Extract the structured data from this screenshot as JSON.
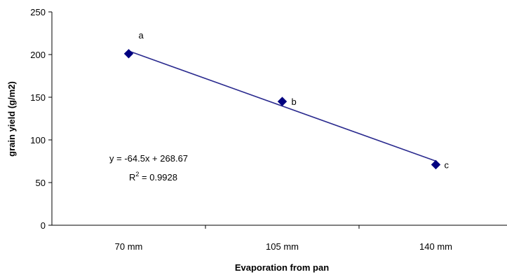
{
  "chart_data": {
    "type": "scatter",
    "title": "",
    "xlabel": "Evaporation from pan",
    "ylabel": "grain yield (g/m2)",
    "categories": [
      "70 mm",
      "105 mm",
      "140 mm"
    ],
    "ylim": [
      0,
      250
    ],
    "yticks": [
      0,
      50,
      100,
      150,
      200,
      250
    ],
    "grid": false,
    "legend": "none",
    "series": [
      {
        "values": [
          201,
          145,
          71
        ],
        "point_labels": [
          "a",
          "b",
          "c"
        ],
        "color": "#000080",
        "marker": "diamond"
      }
    ],
    "trendline": {
      "type": "linear",
      "slope": -64.5,
      "intercept": 268.67,
      "color": "#2b2b8f"
    },
    "annotations": {
      "equation": "y = -64.5x + 268.67",
      "r2_prefix": "R",
      "r2_superscript": "2",
      "r2_value": " = 0.9928"
    }
  }
}
